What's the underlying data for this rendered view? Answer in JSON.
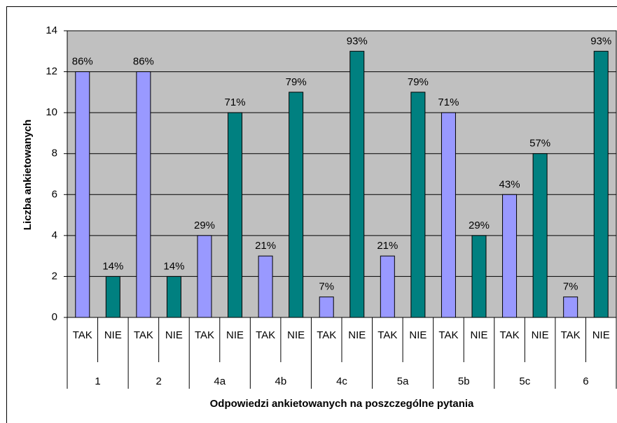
{
  "chart_data": {
    "type": "bar",
    "y_label": "Liczba ankietowanych",
    "x_label": "Odpowiedzi ankietowanych na poszczególne pytania",
    "categories": [
      "1",
      "2",
      "4a",
      "4b",
      "4c",
      "5a",
      "5b",
      "5c",
      "6"
    ],
    "subcategories": [
      "TAK",
      "NIE"
    ],
    "series": [
      {
        "color": "#9999ff",
        "values": [
          12,
          12,
          4,
          3,
          1,
          3,
          10,
          6,
          1
        ],
        "value_labels": [
          "86%",
          "86%",
          "29%",
          "21%",
          "7%",
          "21%",
          "71%",
          "43%",
          "7%"
        ]
      },
      {
        "color": "#008080",
        "values": [
          2,
          2,
          10,
          11,
          13,
          11,
          4,
          8,
          13
        ],
        "value_labels": [
          "14%",
          "14%",
          "71%",
          "79%",
          "93%",
          "79%",
          "29%",
          "57%",
          "93%"
        ]
      }
    ],
    "ylim": [
      0,
      14
    ],
    "yticks": [
      0,
      2,
      4,
      6,
      8,
      10,
      12,
      14
    ],
    "grid": true,
    "plot_background": "#c0c0c0"
  }
}
